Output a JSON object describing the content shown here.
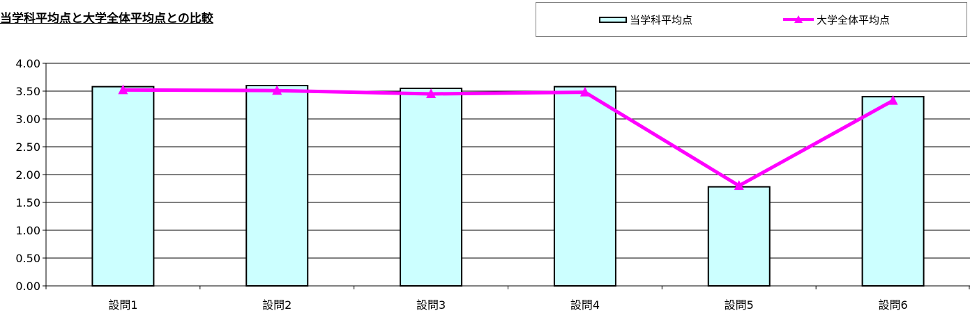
{
  "chart_data": {
    "type": "bar",
    "title": "当学科平均点と大学全体平均点との比較",
    "xlabel": "",
    "ylabel": "",
    "categories": [
      "設問1",
      "設問2",
      "設問3",
      "設問4",
      "設問5",
      "設問6"
    ],
    "ylim": [
      0,
      4
    ],
    "yticks": [
      "0.00",
      "0.50",
      "1.00",
      "1.50",
      "2.00",
      "2.50",
      "3.00",
      "3.50",
      "4.00"
    ],
    "grid": true,
    "legend_position": "top-right",
    "series": [
      {
        "name": "当学科平均点",
        "type": "bar",
        "color": "#ccffff",
        "values": [
          3.58,
          3.6,
          3.55,
          3.58,
          1.78,
          3.4
        ]
      },
      {
        "name": "大学全体平均点",
        "type": "line",
        "marker": "triangle",
        "color": "#ff00ff",
        "values": [
          3.52,
          3.51,
          3.45,
          3.48,
          1.8,
          3.33
        ]
      }
    ]
  }
}
